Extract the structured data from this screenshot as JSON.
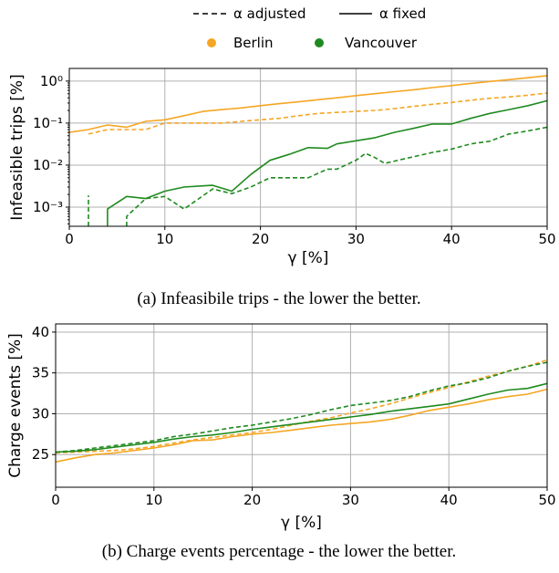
{
  "legend": {
    "style_entries": [
      {
        "label": "α adjusted",
        "dash": "dashed"
      },
      {
        "label": "α fixed",
        "dash": "solid"
      }
    ],
    "city_entries": [
      {
        "label": "Berlin",
        "color": "#f5a623"
      },
      {
        "label": "Vancouver",
        "color": "#1f8a1f"
      }
    ]
  },
  "chart_data": [
    {
      "type": "line",
      "caption": "(a) Infeasibile trips - the lower the better.",
      "xlabel": "γ [%]",
      "ylabel": "Infeasible trips [%]",
      "yscale": "log",
      "xlim": [
        0,
        50
      ],
      "ylim": [
        0.00035,
        2
      ],
      "xticks": [
        0,
        10,
        20,
        30,
        40,
        50
      ],
      "yticks": [
        {
          "value": 0.001,
          "label": "10⁻³"
        },
        {
          "value": 0.01,
          "label": "10⁻²"
        },
        {
          "value": 0.1,
          "label": "10⁻¹"
        },
        {
          "value": 1,
          "label": "10⁰"
        }
      ],
      "grid": true,
      "series": [
        {
          "name": "Berlin",
          "style": "solid",
          "color": "#f5a623",
          "x": [
            0,
            2,
            4,
            6,
            8,
            10,
            12,
            14,
            16,
            18,
            20,
            22,
            24,
            26,
            28,
            30,
            32,
            34,
            36,
            38,
            40,
            42,
            44,
            46,
            48,
            50
          ],
          "y": [
            0.06,
            0.07,
            0.09,
            0.08,
            0.11,
            0.12,
            0.15,
            0.19,
            0.21,
            0.23,
            0.26,
            0.29,
            0.32,
            0.36,
            0.4,
            0.45,
            0.5,
            0.56,
            0.62,
            0.7,
            0.78,
            0.88,
            0.98,
            1.08,
            1.2,
            1.35
          ]
        },
        {
          "name": "Berlin",
          "style": "dashed",
          "color": "#f5a623",
          "x": [
            2,
            4,
            6,
            8,
            10,
            12,
            14,
            16,
            18,
            20,
            22,
            24,
            26,
            28,
            30,
            32,
            34,
            36,
            38,
            40,
            42,
            44,
            46,
            48,
            50
          ],
          "y": [
            0.055,
            0.07,
            0.07,
            0.07,
            0.1,
            0.1,
            0.1,
            0.1,
            0.11,
            0.12,
            0.13,
            0.15,
            0.17,
            0.18,
            0.19,
            0.2,
            0.22,
            0.25,
            0.28,
            0.31,
            0.35,
            0.39,
            0.42,
            0.46,
            0.52
          ]
        },
        {
          "name": "Vancouver",
          "style": "solid",
          "color": "#1f8a1f",
          "x": [
            4,
            4,
            6,
            8,
            10,
            12,
            14,
            15,
            17,
            19,
            21,
            23,
            25,
            27,
            28,
            30,
            32,
            34,
            36,
            38,
            40,
            42,
            44,
            46,
            48,
            50
          ],
          "y": [
            0.00035,
            0.0009,
            0.0018,
            0.0016,
            0.0024,
            0.003,
            0.0032,
            0.0033,
            0.0024,
            0.006,
            0.013,
            0.018,
            0.026,
            0.025,
            0.032,
            0.038,
            0.045,
            0.06,
            0.075,
            0.095,
            0.095,
            0.13,
            0.17,
            0.21,
            0.26,
            0.34
          ]
        },
        {
          "name": "Vancouver",
          "style": "dashed",
          "color": "#1f8a1f",
          "x": [
            2,
            2
          ],
          "y": [
            0.00035,
            0.0019
          ]
        },
        {
          "name": "Vancouver",
          "style": "dashed",
          "color": "#1f8a1f",
          "x": [
            6,
            6,
            8,
            10,
            12,
            15,
            17,
            19,
            21,
            23,
            25,
            27,
            28,
            30,
            31,
            32,
            33,
            35,
            38,
            40,
            42,
            44,
            46,
            48,
            50
          ],
          "y": [
            0.00035,
            0.0006,
            0.0016,
            0.0018,
            0.0009,
            0.0027,
            0.0021,
            0.003,
            0.005,
            0.005,
            0.005,
            0.008,
            0.008,
            0.013,
            0.019,
            0.015,
            0.011,
            0.014,
            0.02,
            0.024,
            0.032,
            0.037,
            0.055,
            0.065,
            0.08
          ]
        }
      ]
    },
    {
      "type": "line",
      "caption": "(b) Charge events percentage - the lower the better.",
      "xlabel": "γ [%]",
      "ylabel": "Charge events [%]",
      "yscale": "linear",
      "xlim": [
        0,
        50
      ],
      "ylim": [
        21,
        41
      ],
      "xticks": [
        0,
        10,
        20,
        30,
        40,
        50
      ],
      "yticks": [
        25,
        30,
        35,
        40
      ],
      "grid": true,
      "series": [
        {
          "name": "Berlin",
          "style": "solid",
          "color": "#f5a623",
          "x": [
            0,
            2,
            4,
            6,
            8,
            10,
            12,
            14,
            16,
            18,
            20,
            22,
            24,
            26,
            28,
            30,
            32,
            34,
            36,
            38,
            40,
            42,
            44,
            46,
            48,
            50
          ],
          "y": [
            24.1,
            24.6,
            25.0,
            25.2,
            25.5,
            25.8,
            26.2,
            26.7,
            26.8,
            27.2,
            27.5,
            27.7,
            28.0,
            28.3,
            28.6,
            28.8,
            29.0,
            29.3,
            29.8,
            30.4,
            30.8,
            31.2,
            31.7,
            32.1,
            32.4,
            33.0
          ]
        },
        {
          "name": "Berlin",
          "style": "dashed",
          "color": "#f5a623",
          "x": [
            0,
            2,
            4,
            6,
            8,
            10,
            12,
            14,
            16,
            18,
            20,
            22,
            24,
            26,
            28,
            30,
            32,
            34,
            36,
            38,
            40,
            42,
            44,
            46,
            48,
            50
          ],
          "y": [
            25.2,
            25.3,
            25.4,
            25.5,
            25.7,
            26.0,
            26.4,
            26.8,
            27.1,
            27.4,
            27.7,
            28.1,
            28.6,
            29.1,
            29.5,
            30.1,
            30.6,
            31.2,
            31.9,
            32.6,
            33.2,
            33.9,
            34.6,
            35.2,
            35.8,
            36.6
          ]
        },
        {
          "name": "Vancouver",
          "style": "solid",
          "color": "#1f8a1f",
          "x": [
            0,
            2,
            4,
            6,
            8,
            10,
            12,
            14,
            16,
            18,
            20,
            22,
            24,
            26,
            28,
            30,
            32,
            34,
            36,
            38,
            40,
            42,
            44,
            46,
            48,
            50
          ],
          "y": [
            25.3,
            25.4,
            25.6,
            25.9,
            26.2,
            26.5,
            26.9,
            27.2,
            27.4,
            27.7,
            28.1,
            28.4,
            28.7,
            29.0,
            29.3,
            29.6,
            29.9,
            30.3,
            30.6,
            30.9,
            31.2,
            31.8,
            32.4,
            32.9,
            33.1,
            33.7
          ]
        },
        {
          "name": "Vancouver",
          "style": "dashed",
          "color": "#1f8a1f",
          "x": [
            0,
            2,
            4,
            6,
            8,
            10,
            12,
            14,
            16,
            18,
            20,
            22,
            24,
            26,
            28,
            30,
            32,
            34,
            36,
            38,
            40,
            42,
            44,
            46,
            48,
            50
          ],
          "y": [
            25.3,
            25.5,
            25.8,
            26.1,
            26.4,
            26.7,
            27.2,
            27.5,
            27.9,
            28.3,
            28.6,
            29.0,
            29.4,
            29.9,
            30.5,
            31.0,
            31.3,
            31.6,
            32.1,
            32.8,
            33.4,
            33.8,
            34.4,
            35.2,
            35.8,
            36.3
          ]
        }
      ]
    }
  ]
}
